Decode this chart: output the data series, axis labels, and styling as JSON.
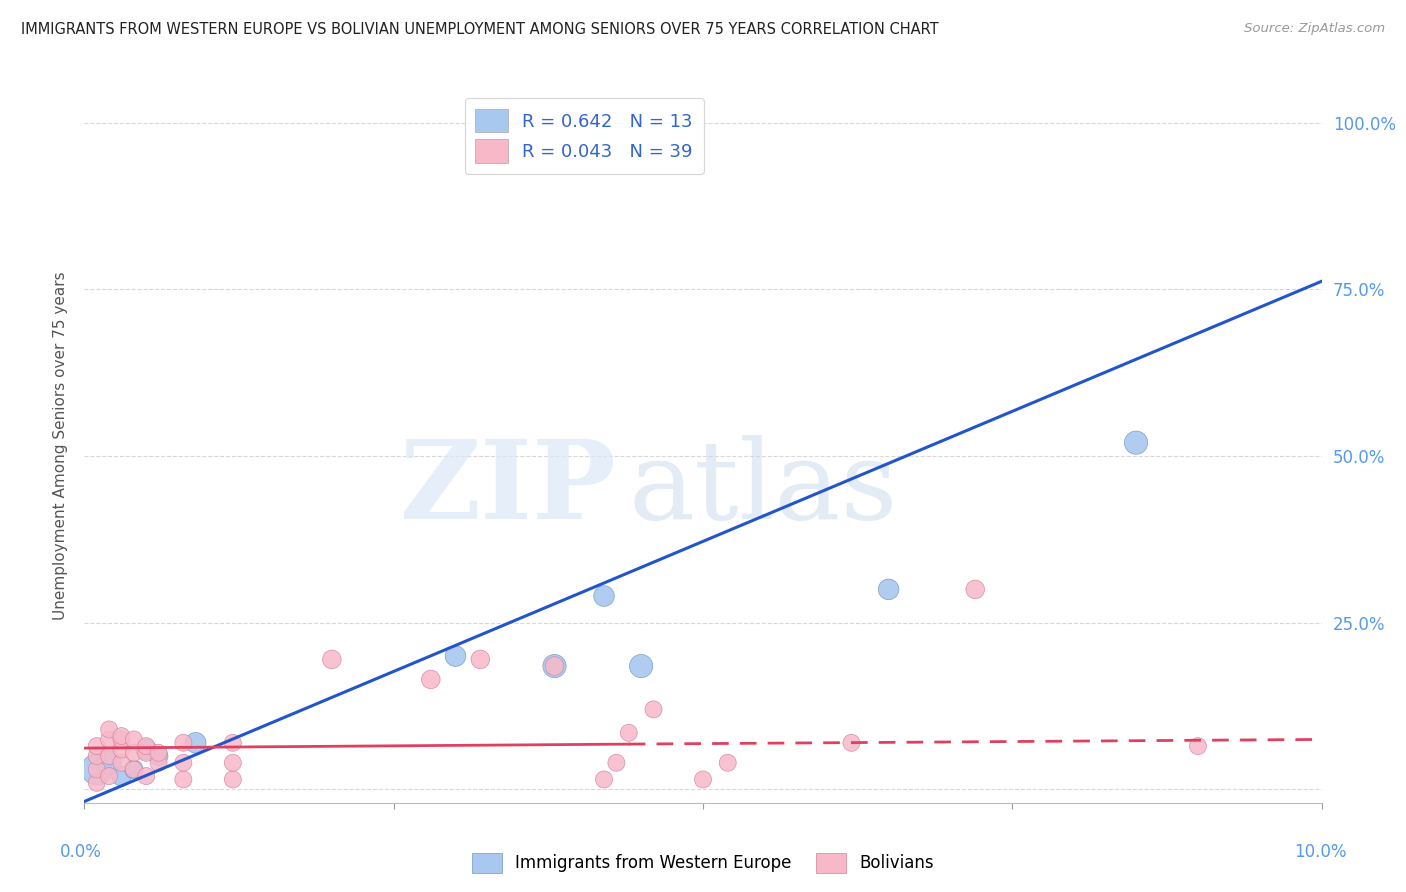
{
  "title": "IMMIGRANTS FROM WESTERN EUROPE VS BOLIVIAN UNEMPLOYMENT AMONG SENIORS OVER 75 YEARS CORRELATION CHART",
  "source": "Source: ZipAtlas.com",
  "ylabel": "Unemployment Among Seniors over 75 years",
  "ytick_labels": [
    "",
    "25.0%",
    "50.0%",
    "75.0%",
    "100.0%"
  ],
  "ytick_values": [
    0.0,
    0.25,
    0.5,
    0.75,
    1.0
  ],
  "xlim": [
    0.0,
    0.1
  ],
  "ylim": [
    -0.02,
    1.05
  ],
  "legend_entries": [
    {
      "label": "R = 0.642   N = 13",
      "color": "#a8c8f0"
    },
    {
      "label": "R = 0.043   N = 39",
      "color": "#f8b8c8"
    }
  ],
  "blue_points": [
    [
      0.001,
      0.03
    ],
    [
      0.002,
      0.04
    ],
    [
      0.003,
      0.02
    ],
    [
      0.004,
      0.03
    ],
    [
      0.005,
      0.06
    ],
    [
      0.006,
      0.05
    ],
    [
      0.009,
      0.07
    ],
    [
      0.03,
      0.2
    ],
    [
      0.038,
      0.185
    ],
    [
      0.042,
      0.29
    ],
    [
      0.045,
      0.185
    ],
    [
      0.065,
      0.3
    ],
    [
      0.085,
      0.52
    ]
  ],
  "blue_sizes": [
    500,
    300,
    200,
    180,
    220,
    180,
    220,
    220,
    280,
    220,
    280,
    220,
    280
  ],
  "pink_points": [
    [
      0.001,
      0.01
    ],
    [
      0.001,
      0.03
    ],
    [
      0.001,
      0.05
    ],
    [
      0.001,
      0.065
    ],
    [
      0.002,
      0.02
    ],
    [
      0.002,
      0.05
    ],
    [
      0.002,
      0.075
    ],
    [
      0.002,
      0.09
    ],
    [
      0.003,
      0.04
    ],
    [
      0.003,
      0.06
    ],
    [
      0.003,
      0.075
    ],
    [
      0.003,
      0.08
    ],
    [
      0.004,
      0.03
    ],
    [
      0.004,
      0.055
    ],
    [
      0.004,
      0.075
    ],
    [
      0.005,
      0.02
    ],
    [
      0.005,
      0.055
    ],
    [
      0.005,
      0.065
    ],
    [
      0.006,
      0.04
    ],
    [
      0.006,
      0.055
    ],
    [
      0.008,
      0.015
    ],
    [
      0.008,
      0.04
    ],
    [
      0.008,
      0.07
    ],
    [
      0.012,
      0.015
    ],
    [
      0.012,
      0.04
    ],
    [
      0.012,
      0.07
    ],
    [
      0.02,
      0.195
    ],
    [
      0.028,
      0.165
    ],
    [
      0.032,
      0.195
    ],
    [
      0.038,
      0.185
    ],
    [
      0.042,
      0.015
    ],
    [
      0.043,
      0.04
    ],
    [
      0.044,
      0.085
    ],
    [
      0.046,
      0.12
    ],
    [
      0.05,
      0.015
    ],
    [
      0.052,
      0.04
    ],
    [
      0.062,
      0.07
    ],
    [
      0.072,
      0.3
    ],
    [
      0.09,
      0.065
    ]
  ],
  "pink_sizes": [
    150,
    150,
    150,
    150,
    150,
    150,
    150,
    150,
    150,
    150,
    150,
    150,
    150,
    150,
    150,
    150,
    150,
    150,
    150,
    150,
    150,
    150,
    150,
    150,
    150,
    150,
    180,
    180,
    180,
    180,
    150,
    150,
    150,
    150,
    150,
    150,
    150,
    180,
    150
  ],
  "blue_line_color": "#2255cc",
  "pink_line_color": "#e04060",
  "blue_trend": [
    0.0,
    -0.018,
    0.1,
    0.762
  ],
  "pink_trend_solid": [
    0.0,
    0.062,
    0.044,
    0.068
  ],
  "pink_trend_dashed": [
    0.044,
    0.068,
    0.1,
    0.075
  ],
  "watermark_zip_color": "#dce8f8",
  "watermark_atlas_color": "#c8d8ec",
  "background_color": "#ffffff",
  "grid_color": "#d8d8d8"
}
